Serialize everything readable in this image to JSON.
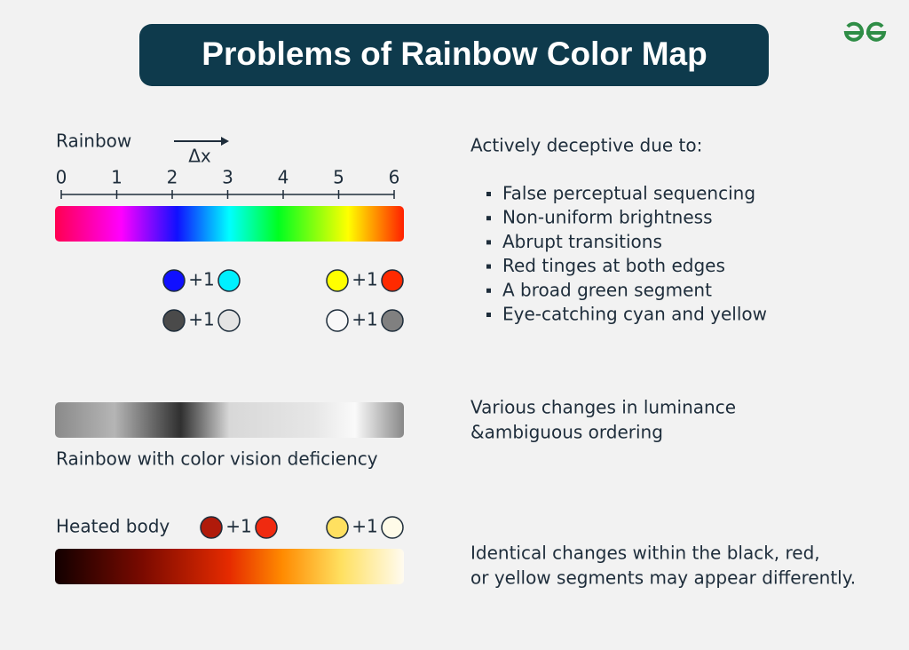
{
  "header": {
    "title": "Problems of Rainbow Color Map"
  },
  "rainbow": {
    "label": "Rainbow",
    "delta": "Δx",
    "ticks": [
      "0",
      "1",
      "2",
      "3",
      "4",
      "5",
      "6"
    ],
    "pairs": [
      "+1",
      "+1",
      "+1",
      "+1"
    ]
  },
  "deficiency": {
    "label": "Rainbow with color vision deficiency"
  },
  "heated": {
    "label": "Heated body",
    "pairs": [
      "+1",
      "+1"
    ]
  },
  "notes": {
    "intro": "Actively deceptive due to:",
    "bullets": [
      "False perceptual sequencing",
      "Non-uniform brightness",
      "Abrupt transitions",
      "Red tinges at both edges",
      "A broad green segment",
      "Eye-catching cyan and yellow"
    ],
    "luminance": [
      "Various changes in luminance",
      "&ambiguous ordering"
    ],
    "identical": [
      "Identical changes within the black, red,",
      "or yellow segments may appear differently."
    ]
  }
}
